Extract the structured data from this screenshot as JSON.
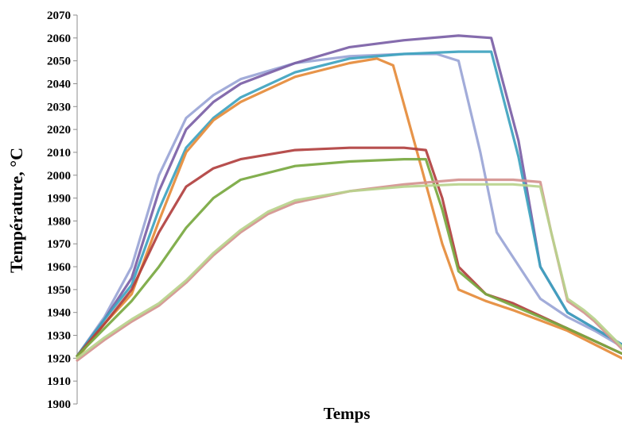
{
  "chart_data": {
    "type": "line",
    "title": "",
    "xlabel": "Temps",
    "ylabel": "Température, °C",
    "ylim": [
      1900,
      2070
    ],
    "xlim": [
      0,
      100
    ],
    "yticks": [
      1900,
      1910,
      1920,
      1930,
      1940,
      1950,
      1960,
      1970,
      1980,
      1990,
      2000,
      2010,
      2020,
      2030,
      2040,
      2050,
      2060,
      2070
    ],
    "tick_labels": [
      "1900",
      "1910",
      "1920",
      "1930",
      "1940",
      "1950",
      "1960",
      "1970",
      "1980",
      "1990",
      "2000",
      "2010",
      "2020",
      "2030",
      "2040",
      "2050",
      "2060",
      "2070"
    ],
    "grid": false,
    "legend": "none",
    "series": [
      {
        "color": "#9aa5d6",
        "x": [
          0,
          5,
          10,
          15,
          20,
          25,
          30,
          40,
          50,
          60,
          66,
          70,
          74,
          77,
          85,
          90,
          95,
          100
        ],
        "y": [
          1921,
          1938,
          1960,
          2000,
          2025,
          2035,
          2042,
          2049,
          2052,
          2053,
          2053,
          2050,
          2010,
          1975,
          1946,
          1938,
          1932,
          1925
        ]
      },
      {
        "color": "#7b5fa6",
        "x": [
          0,
          5,
          10,
          15,
          20,
          25,
          30,
          40,
          50,
          60,
          70,
          76,
          81,
          85,
          90,
          95,
          100
        ],
        "y": [
          1921,
          1937,
          1955,
          1993,
          2020,
          2032,
          2040,
          2049,
          2056,
          2059,
          2061,
          2060,
          2015,
          1960,
          1940,
          1933,
          1926
        ]
      },
      {
        "color": "#3ea3bf",
        "x": [
          0,
          5,
          10,
          15,
          20,
          25,
          30,
          40,
          50,
          60,
          70,
          76,
          81,
          85,
          90,
          95,
          100
        ],
        "y": [
          1921,
          1937,
          1952,
          1985,
          2012,
          2025,
          2034,
          2045,
          2051,
          2053,
          2054,
          2054,
          2008,
          1960,
          1940,
          1933,
          1926
        ]
      },
      {
        "color": "#e58b3a",
        "x": [
          0,
          5,
          10,
          15,
          20,
          25,
          30,
          40,
          50,
          55,
          58,
          63,
          67,
          70,
          75,
          80,
          90,
          100
        ],
        "y": [
          1920,
          1935,
          1948,
          1980,
          2010,
          2024,
          2032,
          2043,
          2049,
          2051,
          2048,
          2005,
          1970,
          1950,
          1945,
          1941,
          1932,
          1920
        ]
      },
      {
        "color": "#b1403f",
        "x": [
          0,
          5,
          10,
          15,
          20,
          25,
          30,
          40,
          50,
          60,
          64,
          67,
          70,
          75,
          80,
          90,
          100
        ],
        "y": [
          1921,
          1935,
          1950,
          1975,
          1995,
          2003,
          2007,
          2011,
          2012,
          2012,
          2011,
          1990,
          1960,
          1948,
          1944,
          1933,
          1922
        ]
      },
      {
        "color": "#78a840",
        "x": [
          0,
          5,
          10,
          15,
          20,
          25,
          30,
          40,
          50,
          60,
          64,
          67,
          70,
          75,
          80,
          90,
          100
        ],
        "y": [
          1921,
          1933,
          1945,
          1960,
          1977,
          1990,
          1998,
          2004,
          2006,
          2007,
          2007,
          1985,
          1958,
          1948,
          1943,
          1933,
          1922
        ]
      },
      {
        "color": "#d4928f",
        "x": [
          0,
          5,
          10,
          15,
          20,
          25,
          30,
          35,
          40,
          50,
          60,
          70,
          80,
          85,
          87,
          90,
          93,
          95,
          100
        ],
        "y": [
          1919,
          1928,
          1936,
          1943,
          1953,
          1965,
          1975,
          1983,
          1988,
          1993,
          1996,
          1998,
          1998,
          1997,
          1975,
          1945,
          1940,
          1936,
          1924
        ]
      },
      {
        "color": "#b9d38c",
        "x": [
          0,
          5,
          10,
          15,
          20,
          25,
          30,
          35,
          40,
          50,
          60,
          70,
          80,
          85,
          87,
          90,
          93,
          95,
          100
        ],
        "y": [
          1920,
          1929,
          1937,
          1944,
          1954,
          1966,
          1976,
          1984,
          1989,
          1993,
          1995,
          1996,
          1996,
          1995,
          1975,
          1946,
          1941,
          1937,
          1925
        ]
      }
    ]
  }
}
